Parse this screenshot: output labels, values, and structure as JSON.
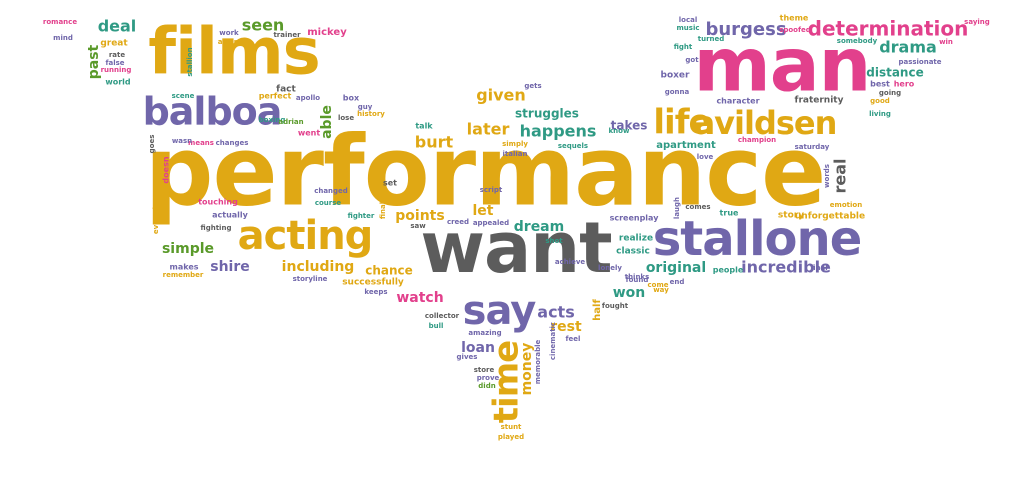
{
  "palette": {
    "gold": "#e0a814",
    "purple": "#7066aa",
    "magenta": "#e2408c",
    "teal": "#2f9a84",
    "green": "#5a9a2a",
    "grey": "#5c5c5c",
    "red": "#d04a3a",
    "orange": "#e68a1a",
    "blue": "#4a7ab8"
  },
  "words": [
    {
      "text": "performance",
      "color": "gold"
    },
    {
      "text": "want",
      "color": "grey"
    },
    {
      "text": "man",
      "color": "magenta"
    },
    {
      "text": "films",
      "color": "gold"
    },
    {
      "text": "stallone",
      "color": "purple"
    },
    {
      "text": "balboa",
      "color": "purple"
    },
    {
      "text": "acting",
      "color": "gold"
    },
    {
      "text": "avildsen",
      "color": "gold"
    },
    {
      "text": "life",
      "color": "gold"
    },
    {
      "text": "say",
      "color": "purple"
    },
    {
      "text": "time",
      "color": "gold"
    },
    {
      "text": "determination",
      "color": "magenta"
    },
    {
      "text": "burgess",
      "color": "purple"
    },
    {
      "text": "drama",
      "color": "teal"
    },
    {
      "text": "incredible",
      "color": "purple"
    },
    {
      "text": "happens",
      "color": "teal"
    },
    {
      "text": "later",
      "color": "gold"
    },
    {
      "text": "given",
      "color": "gold"
    },
    {
      "text": "struggles",
      "color": "teal"
    },
    {
      "text": "burt",
      "color": "gold"
    },
    {
      "text": "able",
      "color": "green"
    },
    {
      "text": "seen",
      "color": "green"
    },
    {
      "text": "deal",
      "color": "teal"
    },
    {
      "text": "past",
      "color": "green"
    },
    {
      "text": "simple",
      "color": "green"
    },
    {
      "text": "shire",
      "color": "purple"
    },
    {
      "text": "including",
      "color": "gold"
    },
    {
      "text": "points",
      "color": "gold"
    },
    {
      "text": "let",
      "color": "gold"
    },
    {
      "text": "dream",
      "color": "teal"
    },
    {
      "text": "watch",
      "color": "magenta"
    },
    {
      "text": "acts",
      "color": "purple"
    },
    {
      "text": "rest",
      "color": "gold"
    },
    {
      "text": "loan",
      "color": "purple"
    },
    {
      "text": "money",
      "color": "gold"
    },
    {
      "text": "won",
      "color": "teal"
    },
    {
      "text": "original",
      "color": "teal"
    },
    {
      "text": "real",
      "color": "grey"
    },
    {
      "text": "distance",
      "color": "teal"
    },
    {
      "text": "chance",
      "color": "gold"
    },
    {
      "text": "successfully",
      "color": "gold"
    },
    {
      "text": "takes",
      "color": "purple"
    },
    {
      "text": "apartment",
      "color": "teal"
    },
    {
      "text": "fraternity",
      "color": "grey"
    },
    {
      "text": "half",
      "color": "gold"
    },
    {
      "text": "mickey",
      "color": "magenta"
    },
    {
      "text": "fact",
      "color": "grey"
    },
    {
      "text": "box",
      "color": "purple"
    },
    {
      "text": "boxer",
      "color": "purple"
    },
    {
      "text": "character",
      "color": "purple"
    },
    {
      "text": "great",
      "color": "gold"
    },
    {
      "text": "world",
      "color": "teal"
    },
    {
      "text": "romance",
      "color": "magenta"
    },
    {
      "text": "mind",
      "color": "purple"
    },
    {
      "text": "running",
      "color": "magenta"
    },
    {
      "text": "rate",
      "color": "grey"
    },
    {
      "text": "false",
      "color": "purple"
    },
    {
      "text": "work",
      "color": "purple"
    },
    {
      "text": "award",
      "color": "gold"
    },
    {
      "text": "trainer",
      "color": "grey"
    },
    {
      "text": "stallion",
      "color": "teal"
    },
    {
      "text": "perfect",
      "color": "gold"
    },
    {
      "text": "apollo",
      "color": "purple"
    },
    {
      "text": "scene",
      "color": "teal"
    },
    {
      "text": "boxing",
      "color": "teal"
    },
    {
      "text": "adrian",
      "color": "green"
    },
    {
      "text": "went",
      "color": "magenta"
    },
    {
      "text": "guy",
      "color": "purple"
    },
    {
      "text": "history",
      "color": "gold"
    },
    {
      "text": "lose",
      "color": "grey"
    },
    {
      "text": "means",
      "color": "magenta"
    },
    {
      "text": "changes",
      "color": "purple"
    },
    {
      "text": "wasn",
      "color": "purple"
    },
    {
      "text": "goes",
      "color": "grey"
    },
    {
      "text": "doesn",
      "color": "magenta"
    },
    {
      "text": "everyday",
      "color": "gold"
    },
    {
      "text": "touching",
      "color": "magenta"
    },
    {
      "text": "actually",
      "color": "purple"
    },
    {
      "text": "fighting",
      "color": "grey"
    },
    {
      "text": "changed",
      "color": "purple"
    },
    {
      "text": "course",
      "color": "teal"
    },
    {
      "text": "fighter",
      "color": "teal"
    },
    {
      "text": "finally",
      "color": "gold"
    },
    {
      "text": "set",
      "color": "grey"
    },
    {
      "text": "script",
      "color": "purple"
    },
    {
      "text": "creed",
      "color": "purple"
    },
    {
      "text": "appealed",
      "color": "purple"
    },
    {
      "text": "saw",
      "color": "grey"
    },
    {
      "text": "talk",
      "color": "teal"
    },
    {
      "text": "simply",
      "color": "gold"
    },
    {
      "text": "italian",
      "color": "purple"
    },
    {
      "text": "sequels",
      "color": "teal"
    },
    {
      "text": "gets",
      "color": "purple"
    },
    {
      "text": "makes",
      "color": "purple"
    },
    {
      "text": "remember",
      "color": "gold"
    },
    {
      "text": "storyline",
      "color": "purple"
    },
    {
      "text": "keeps",
      "color": "purple"
    },
    {
      "text": "collector",
      "color": "grey"
    },
    {
      "text": "bull",
      "color": "teal"
    },
    {
      "text": "amazing",
      "color": "purple"
    },
    {
      "text": "gives",
      "color": "purple"
    },
    {
      "text": "store",
      "color": "grey"
    },
    {
      "text": "prove",
      "color": "purple"
    },
    {
      "text": "didn",
      "color": "green"
    },
    {
      "text": "stunt",
      "color": "gold"
    },
    {
      "text": "played",
      "color": "gold"
    },
    {
      "text": "cinematic",
      "color": "purple"
    },
    {
      "text": "memorable",
      "color": "purple"
    },
    {
      "text": "feel",
      "color": "purple"
    },
    {
      "text": "shot",
      "color": "teal"
    },
    {
      "text": "achieve",
      "color": "purple"
    },
    {
      "text": "fought",
      "color": "grey"
    },
    {
      "text": "lonely",
      "color": "purple"
    },
    {
      "text": "realize",
      "color": "teal"
    },
    {
      "text": "classic",
      "color": "teal"
    },
    {
      "text": "screenplay",
      "color": "purple"
    },
    {
      "text": "come",
      "color": "gold"
    },
    {
      "text": "way",
      "color": "gold"
    },
    {
      "text": "end",
      "color": "purple"
    },
    {
      "text": "thinks",
      "color": "purple"
    },
    {
      "text": "found",
      "color": "purple"
    },
    {
      "text": "people",
      "color": "teal"
    },
    {
      "text": "final",
      "color": "purple"
    },
    {
      "text": "true",
      "color": "teal"
    },
    {
      "text": "comes",
      "color": "grey"
    },
    {
      "text": "laugh",
      "color": "purple"
    },
    {
      "text": "story",
      "color": "gold"
    },
    {
      "text": "unforgettable",
      "color": "gold"
    },
    {
      "text": "emotion",
      "color": "gold"
    },
    {
      "text": "words",
      "color": "purple"
    },
    {
      "text": "saturday",
      "color": "purple"
    },
    {
      "text": "love",
      "color": "purple"
    },
    {
      "text": "champion",
      "color": "magenta"
    },
    {
      "text": "living",
      "color": "teal"
    },
    {
      "text": "good",
      "color": "gold"
    },
    {
      "text": "best",
      "color": "purple"
    },
    {
      "text": "hero",
      "color": "magenta"
    },
    {
      "text": "going",
      "color": "grey"
    },
    {
      "text": "passionate",
      "color": "purple"
    },
    {
      "text": "somebody",
      "color": "teal"
    },
    {
      "text": "win",
      "color": "magenta"
    },
    {
      "text": "theme",
      "color": "gold"
    },
    {
      "text": "spoofed",
      "color": "magenta"
    },
    {
      "text": "turned",
      "color": "teal"
    },
    {
      "text": "local",
      "color": "purple"
    },
    {
      "text": "music",
      "color": "teal"
    },
    {
      "text": "fight",
      "color": "teal"
    },
    {
      "text": "got",
      "color": "purple"
    },
    {
      "text": "saying",
      "color": "magenta"
    },
    {
      "text": "gonna",
      "color": "purple"
    },
    {
      "text": "know",
      "color": "teal"
    }
  ]
}
